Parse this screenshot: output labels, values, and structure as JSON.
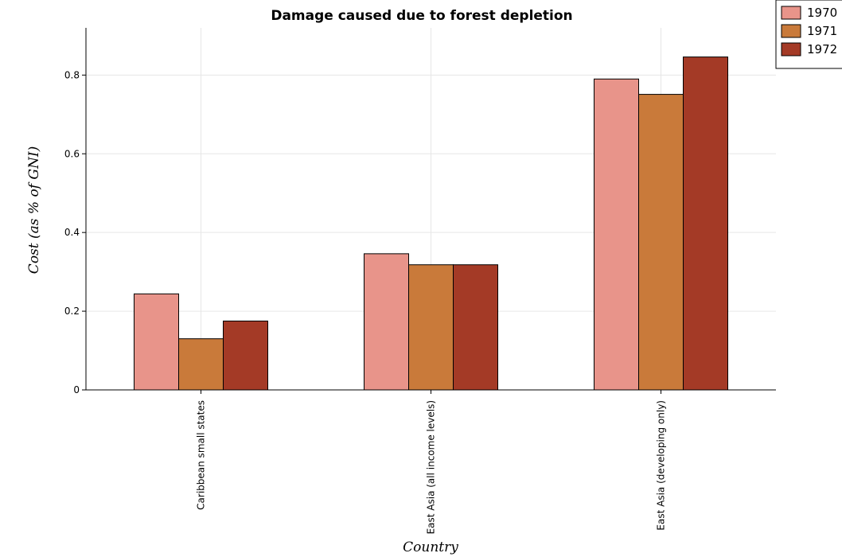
{
  "chart_data": {
    "type": "bar",
    "title": "Damage caused due to forest depletion",
    "xlabel": "Country",
    "ylabel": "Cost (as % of GNI)",
    "categories": [
      "Caribbean small states",
      "East Asia (all income levels)",
      "East Asia (developing only)"
    ],
    "series": [
      {
        "name": "1970",
        "color": "#e8948a",
        "values": [
          0.244,
          0.346,
          0.79
        ]
      },
      {
        "name": "1971",
        "color": "#c97a3a",
        "values": [
          0.13,
          0.318,
          0.751
        ]
      },
      {
        "name": "1972",
        "color": "#a43a26",
        "values": [
          0.175,
          0.318,
          0.846
        ]
      }
    ],
    "ylim": [
      0,
      0.92
    ],
    "yticks": [
      0,
      0.2,
      0.4,
      0.6,
      0.8
    ],
    "ytick_labels": [
      "0",
      "0.2",
      "0.4",
      "0.6",
      "0.8"
    ],
    "grid": true,
    "legend_position": "top-right"
  }
}
